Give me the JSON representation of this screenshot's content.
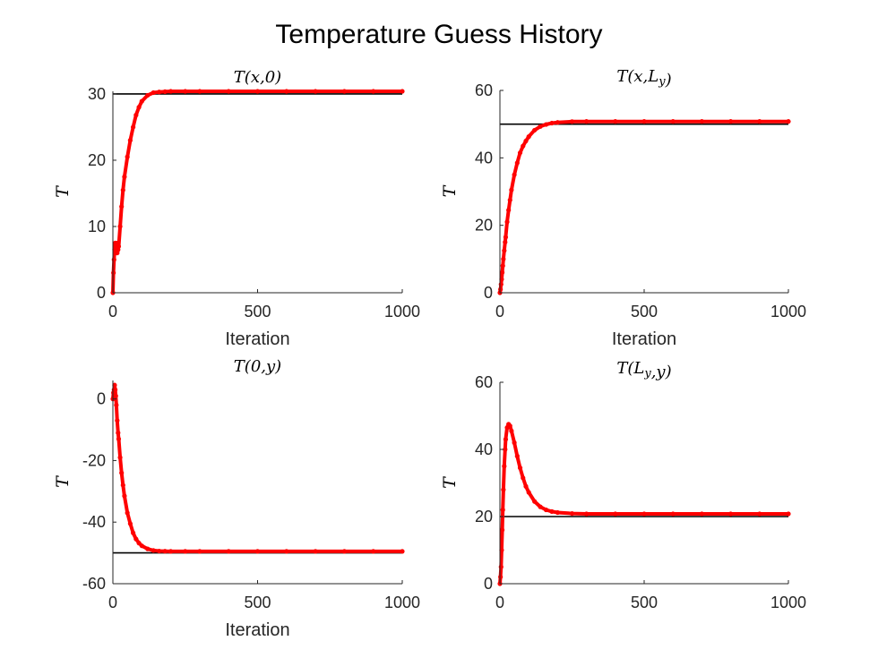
{
  "chart_data": {
    "title": "Temperature Guess History",
    "type": "line",
    "colors": {
      "series": "#ff0000",
      "reference": "#000000",
      "axis": "#262626"
    },
    "x": [
      0,
      2,
      4,
      6,
      8,
      10,
      12,
      15,
      18,
      20,
      25,
      30,
      35,
      40,
      50,
      60,
      70,
      80,
      90,
      100,
      120,
      140,
      160,
      180,
      200,
      250,
      300,
      400,
      500,
      600,
      700,
      800,
      900,
      1000
    ],
    "panels": [
      {
        "title": "T(x,0)",
        "xlabel": "Iteration",
        "ylabel": "T",
        "xlim": [
          0,
          1000
        ],
        "ylim": [
          0,
          30.4
        ],
        "xticks": [
          "0",
          "500",
          "1000"
        ],
        "yticks": [
          "0",
          "10",
          "20",
          "30"
        ],
        "ytick_values": [
          0,
          10,
          20,
          30
        ],
        "reference": 30,
        "values": [
          0,
          3,
          5,
          6.5,
          7.5,
          6,
          7.5,
          6,
          6.5,
          7,
          10,
          13,
          15.5,
          17.5,
          20.5,
          23,
          25,
          26.8,
          28,
          28.9,
          29.8,
          30.2,
          30.3,
          30.35,
          30.4,
          30.4,
          30.4,
          30.4,
          30.4,
          30.4,
          30.4,
          30.4,
          30.4,
          30.4
        ]
      },
      {
        "title": "T(x,L_y)",
        "xlabel": "Iteration",
        "ylabel": "T",
        "xlim": [
          0,
          1000
        ],
        "ylim": [
          0,
          60
        ],
        "xticks": [
          "0",
          "500",
          "1000"
        ],
        "yticks": [
          "0",
          "20",
          "40",
          "60"
        ],
        "ytick_values": [
          0,
          20,
          40,
          60
        ],
        "reference": 50,
        "values": [
          0,
          1,
          2.5,
          4,
          6,
          8,
          10,
          12.5,
          15,
          16.5,
          21,
          24.5,
          27.5,
          30.5,
          35,
          38.5,
          41.5,
          43.5,
          45,
          46.3,
          48.2,
          49.3,
          49.9,
          50.3,
          50.5,
          50.75,
          50.8,
          50.8,
          50.8,
          50.8,
          50.8,
          50.8,
          50.8,
          50.8
        ]
      },
      {
        "title": "T(0,y)",
        "xlabel": "Iteration",
        "ylabel": "T",
        "xlim": [
          0,
          1000
        ],
        "ylim": [
          -60,
          6
        ],
        "xticks": [
          "0",
          "500",
          "1000"
        ],
        "yticks": [
          "-60",
          "-40",
          "-20",
          "0"
        ],
        "ytick_values": [
          -60,
          -40,
          -20,
          0
        ],
        "reference": -50,
        "values": [
          0,
          2,
          3,
          4.5,
          3,
          1,
          -2,
          -7,
          -11,
          -13,
          -19,
          -24,
          -28,
          -31.5,
          -37,
          -40.5,
          -43.5,
          -45.5,
          -46.8,
          -47.7,
          -48.7,
          -49.2,
          -49.4,
          -49.45,
          -49.5,
          -49.5,
          -49.5,
          -49.5,
          -49.5,
          -49.5,
          -49.5,
          -49.5,
          -49.5,
          -49.5
        ]
      },
      {
        "title": "T(L_y,y)",
        "xlabel": "",
        "ylabel": "T",
        "xlim": [
          0,
          1000
        ],
        "ylim": [
          0,
          60
        ],
        "xticks": [
          "0",
          "500",
          "1000"
        ],
        "yticks": [
          "0",
          "20",
          "40",
          "60"
        ],
        "ytick_values": [
          0,
          20,
          40,
          60
        ],
        "reference": 20,
        "values": [
          0,
          2,
          5,
          10,
          16,
          22,
          28,
          35,
          40,
          43,
          46.5,
          47.5,
          47,
          45.5,
          42,
          38,
          34.5,
          31.5,
          29,
          27.2,
          24.5,
          22.9,
          22,
          21.5,
          21.2,
          20.9,
          20.8,
          20.8,
          20.8,
          20.8,
          20.8,
          20.8,
          20.8,
          20.8
        ]
      }
    ]
  }
}
